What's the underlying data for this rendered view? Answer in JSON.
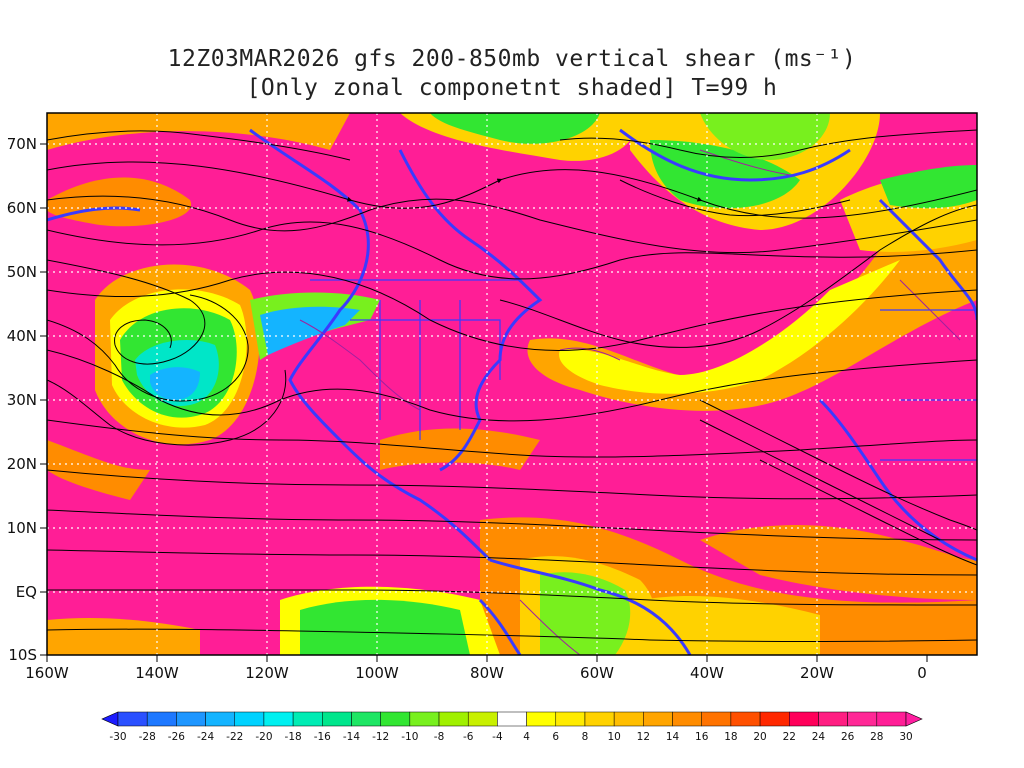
{
  "title_line1": "12Z03MAR2026 gfs 200-850mb vertical shear (ms⁻¹)",
  "title_line2": "[Only zonal componetnt shaded] T=99 h",
  "lat_labels": [
    "70N",
    "60N",
    "50N",
    "40N",
    "30N",
    "20N",
    "10N",
    "EQ",
    "10S"
  ],
  "lon_labels": [
    "160W",
    "140W",
    "120W",
    "100W",
    "80W",
    "60W",
    "40W",
    "20W",
    "0"
  ],
  "colorbar": {
    "levels": [
      "-30",
      "-28",
      "-26",
      "-24",
      "-22",
      "-20",
      "-18",
      "-16",
      "-14",
      "-12",
      "-10",
      "-8",
      "-6",
      "-4",
      "4",
      "6",
      "8",
      "10",
      "12",
      "14",
      "16",
      "18",
      "20",
      "22",
      "24",
      "26",
      "28",
      "30"
    ],
    "colors": [
      "#1c1cff",
      "#2a50ff",
      "#1e78ff",
      "#1e96ff",
      "#14b4ff",
      "#00d2ff",
      "#00f0f0",
      "#00ecb4",
      "#00e68c",
      "#1ee664",
      "#32e632",
      "#78f01e",
      "#a0f000",
      "#c8f000",
      "#ffffff",
      "#ffff00",
      "#ffeb00",
      "#ffd200",
      "#ffbe00",
      "#ffa500",
      "#ff8c00",
      "#ff7300",
      "#ff5000",
      "#ff2800",
      "#ff005a",
      "#ff1e82",
      "#ff2896",
      "#ff1e96",
      "#ff1ea0"
    ]
  },
  "colors": {
    "land_border": "#3a3aff",
    "streamline": "#000000",
    "contour": "#a020a0",
    "grid": "#ffffff"
  }
}
